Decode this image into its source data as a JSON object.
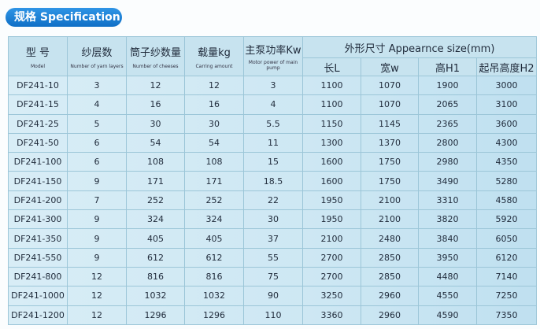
{
  "title": "规格 Specification",
  "headers": {
    "model": {
      "zh": "型 号",
      "en": "Model"
    },
    "layers": {
      "zh": "纱层数",
      "en": "Number of yarn layers"
    },
    "cheeses": {
      "zh": "筒子纱数量",
      "en": "Number of cheeses"
    },
    "load": {
      "zh": "载量kg",
      "en": "Carring amount"
    },
    "pump": {
      "zh": "主泵功率Kw",
      "en": "Motor power of main pump"
    },
    "size": "外形尺寸 Appearnce size(mm)",
    "length": "长L",
    "width": "宽w",
    "height": "高H1",
    "lift": "起吊高度H2"
  },
  "rows": [
    [
      "DF241-10",
      "3",
      "12",
      "12",
      "3",
      "1100",
      "1070",
      "1900",
      "3000"
    ],
    [
      "DF241-15",
      "4",
      "16",
      "16",
      "4",
      "1100",
      "1070",
      "2065",
      "3100"
    ],
    [
      "DF241-25",
      "5",
      "30",
      "30",
      "5.5",
      "1150",
      "1145",
      "2365",
      "3600"
    ],
    [
      "DF241-50",
      "6",
      "54",
      "54",
      "11",
      "1300",
      "1370",
      "2800",
      "4300"
    ],
    [
      "DF241-100",
      "6",
      "108",
      "108",
      "15",
      "1600",
      "1750",
      "2980",
      "4350"
    ],
    [
      "DF241-150",
      "9",
      "171",
      "171",
      "18.5",
      "1600",
      "1750",
      "3490",
      "5280"
    ],
    [
      "DF241-200",
      "7",
      "252",
      "252",
      "22",
      "1950",
      "2100",
      "3310",
      "4580"
    ],
    [
      "DF241-300",
      "9",
      "324",
      "324",
      "30",
      "1950",
      "2100",
      "3820",
      "5920"
    ],
    [
      "DF241-350",
      "9",
      "405",
      "405",
      "37",
      "2100",
      "2480",
      "3840",
      "6050"
    ],
    [
      "DF241-550",
      "9",
      "612",
      "612",
      "55",
      "2700",
      "2850",
      "3950",
      "6120"
    ],
    [
      "DF241-800",
      "12",
      "816",
      "816",
      "75",
      "2700",
      "2850",
      "4480",
      "7140"
    ],
    [
      "DF241-1000",
      "12",
      "1032",
      "1032",
      "90",
      "3250",
      "2960",
      "4550",
      "7250"
    ],
    [
      "DF241-1200",
      "12",
      "1296",
      "1296",
      "110",
      "3360",
      "2960",
      "4590",
      "7350"
    ]
  ]
}
